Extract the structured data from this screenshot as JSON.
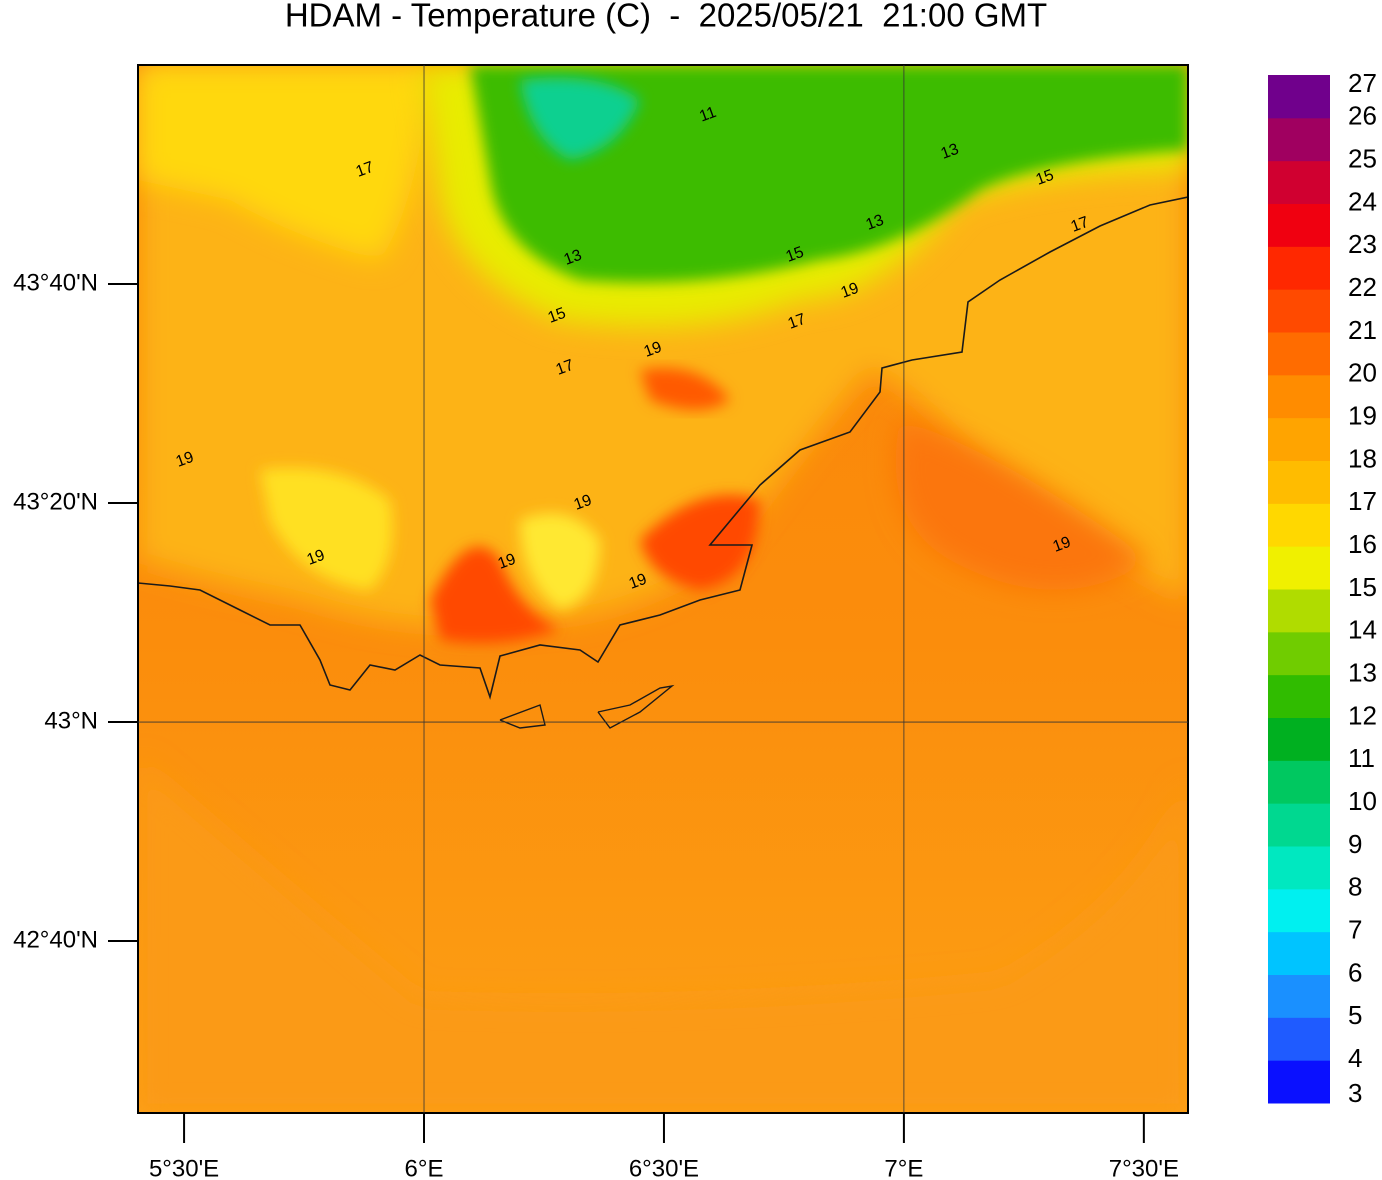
{
  "chart_data": {
    "type": "contour-map",
    "title": "HDAM - Temperature (C)  -  2025/05/21  21:00 GMT",
    "xlim": [
      5.404,
      7.592
    ],
    "ylim": [
      42.405,
      44.0
    ],
    "xticks": [
      {
        "value": 5.5,
        "label": "5°30'E"
      },
      {
        "value": 6,
        "label": "6°E"
      },
      {
        "value": 6.5,
        "label": "6°30'E"
      },
      {
        "value": 7,
        "label": "7°E"
      },
      {
        "value": 7.5,
        "label": "7°30'E"
      }
    ],
    "yticks": [
      {
        "value": 42.6667,
        "label": "42°40'N"
      },
      {
        "value": 43,
        "label": "43°N"
      },
      {
        "value": 43.3333,
        "label": "43°20'N"
      },
      {
        "value": 43.6667,
        "label": "43°40'N"
      }
    ],
    "colorbar": {
      "ticks": [
        3,
        4,
        5,
        6,
        7,
        8,
        9,
        10,
        11,
        12,
        13,
        14,
        15,
        16,
        17,
        18,
        19,
        20,
        21,
        22,
        23,
        24,
        25,
        26,
        27
      ],
      "colors": [
        "#0a10ff",
        "#1f5bff",
        "#1a90ff",
        "#00c4ff",
        "#00f0f0",
        "#00e8c0",
        "#00d890",
        "#00c860",
        "#00b020",
        "#30bc00",
        "#70cc00",
        "#b0dc00",
        "#f0f000",
        "#ffd800",
        "#ffbc00",
        "#ffa400",
        "#ff8c00",
        "#ff6c00",
        "#ff4a00",
        "#ff2800",
        "#f00010",
        "#d00030",
        "#a00060",
        "#70008c"
      ]
    },
    "contour_labels": [
      11,
      13,
      13,
      13,
      15,
      15,
      15,
      17,
      17,
      17,
      17,
      19,
      19,
      19,
      19,
      19,
      19,
      19,
      19
    ]
  }
}
